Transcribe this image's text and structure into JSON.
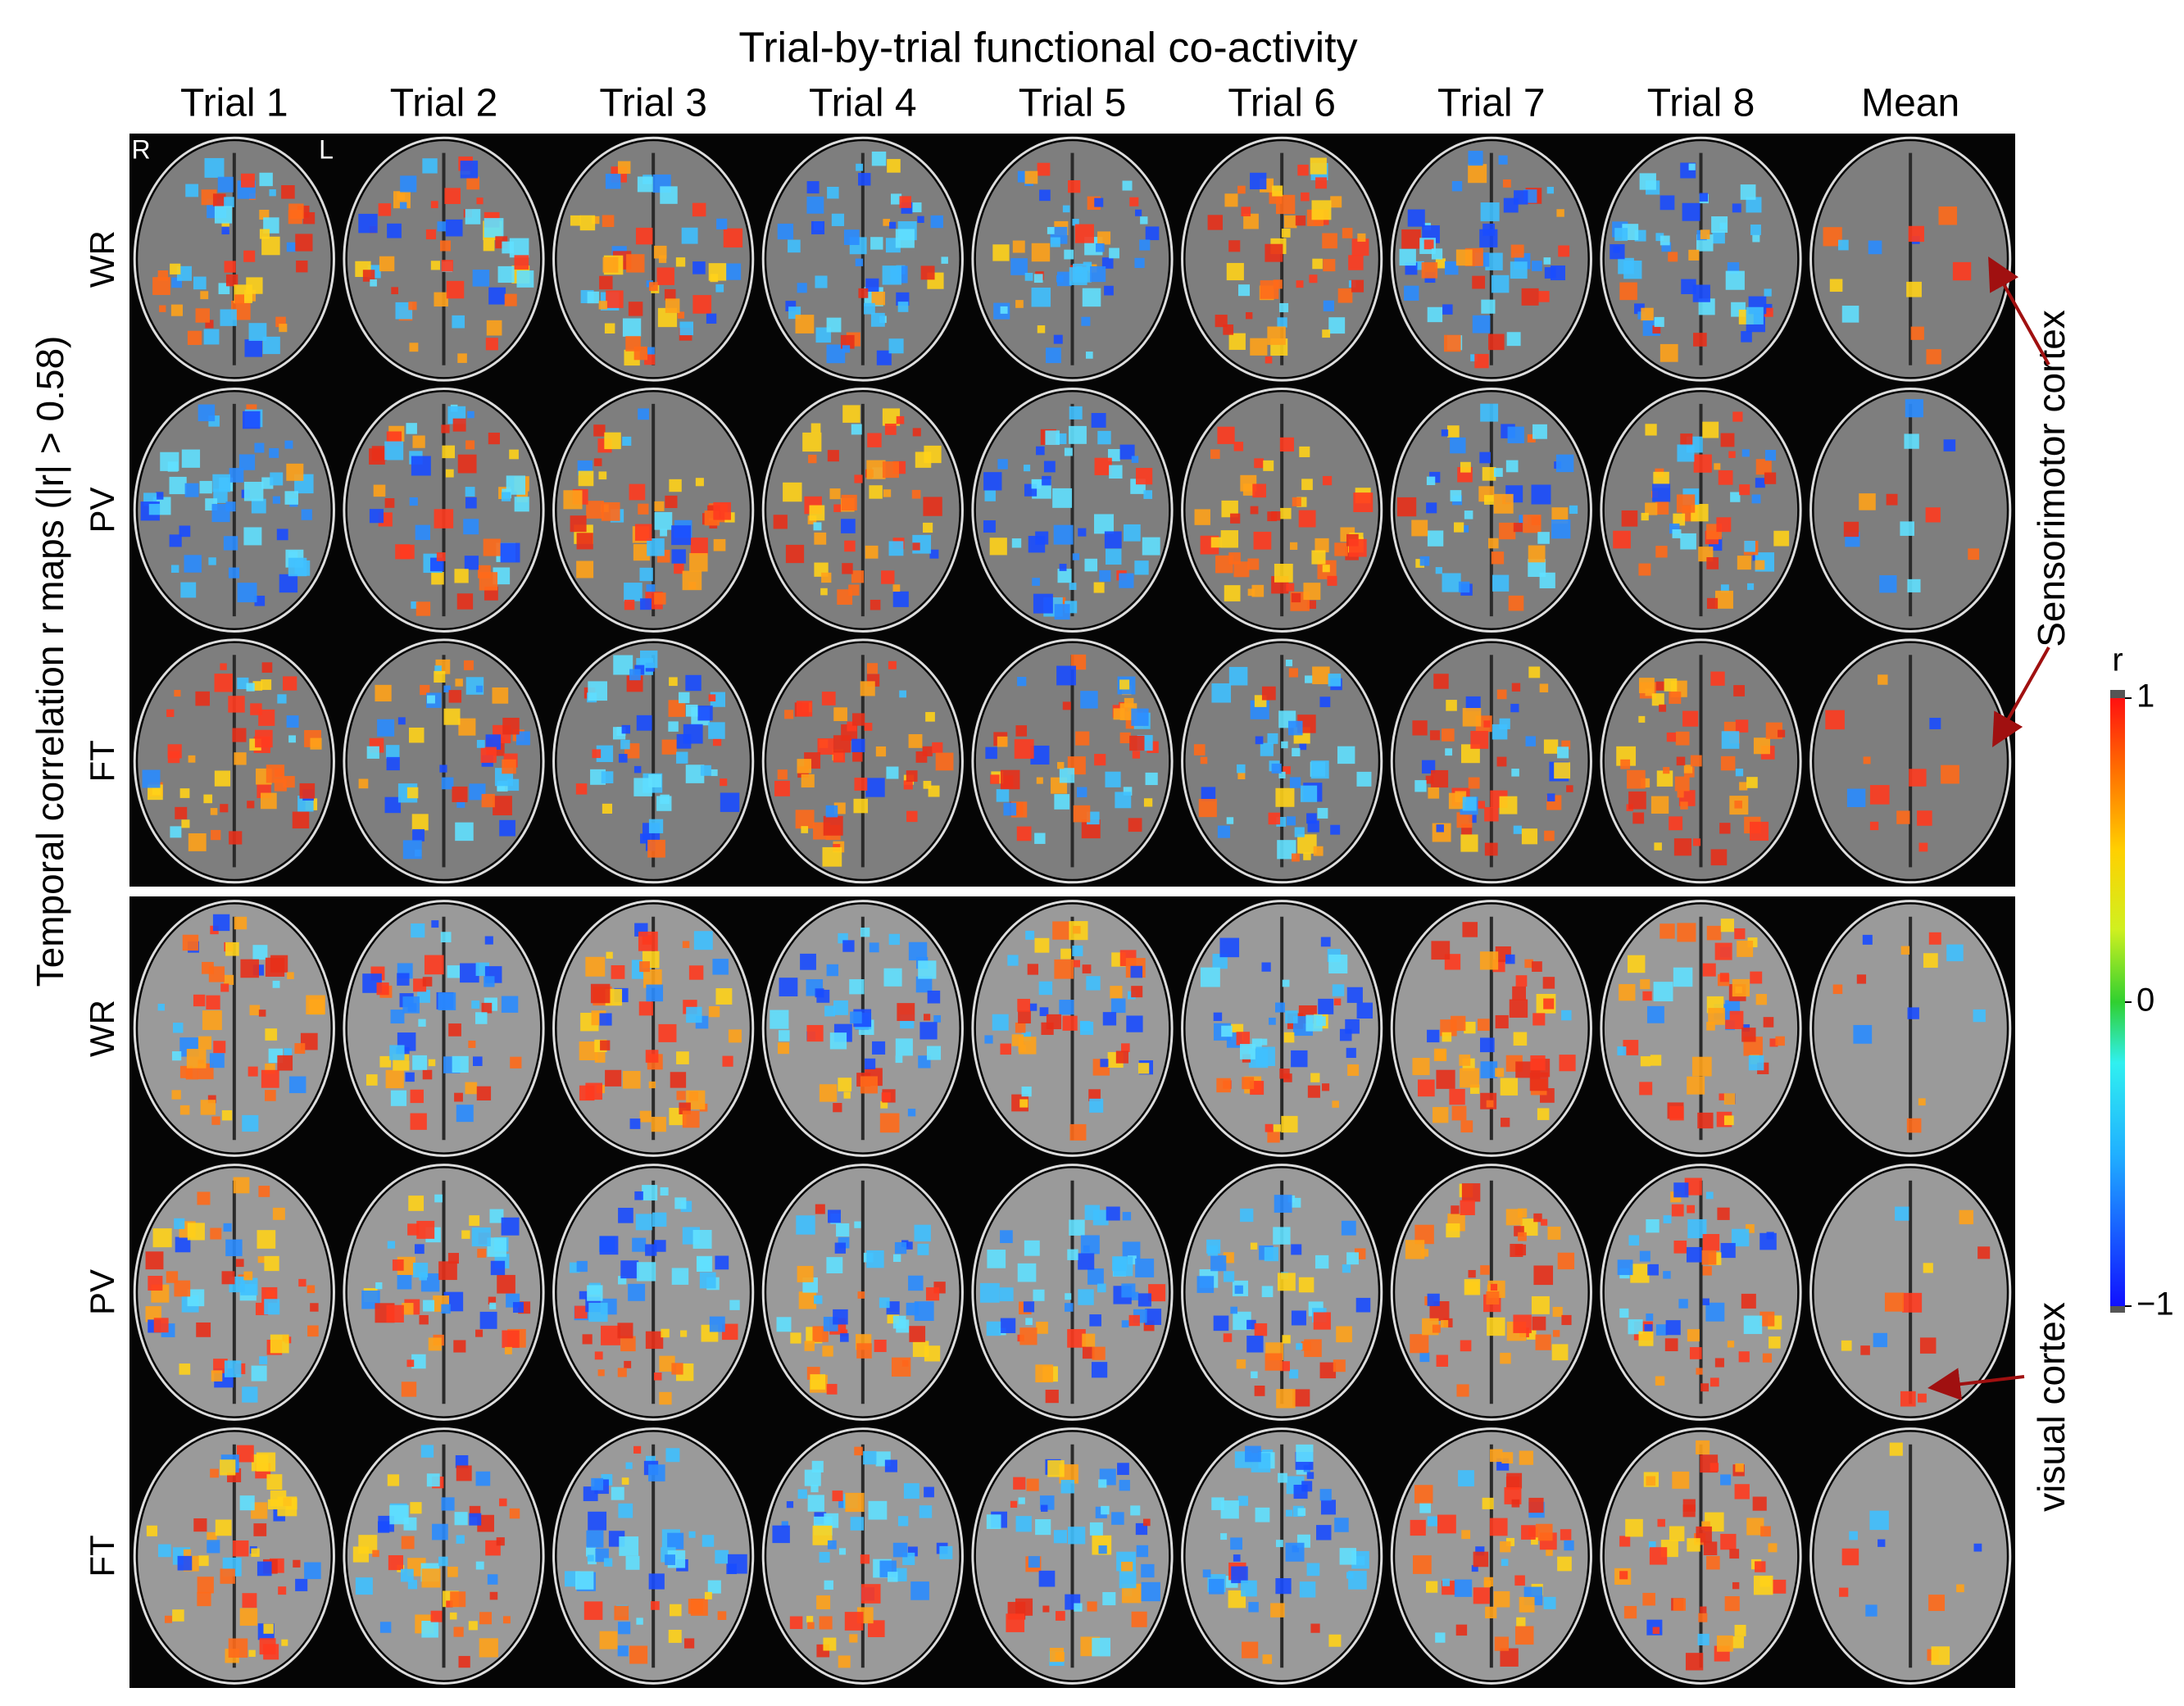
{
  "title": "Trial-by-trial  functional  co-activity",
  "columns": [
    "Trial 1",
    "Trial 2",
    "Trial 3",
    "Trial 4",
    "Trial 5",
    "Trial 6",
    "Trial 7",
    "Trial 8",
    "Mean"
  ],
  "orientation": [
    "R",
    "L"
  ],
  "blocks": [
    {
      "rows": [
        "WR",
        "PV",
        "FT"
      ]
    },
    {
      "rows": [
        "WR",
        "PV",
        "FT"
      ]
    }
  ],
  "y_label": "Temporal correlation r maps (|r| > 0.58)",
  "annotations": [
    "Sensorimotor cortex",
    "visual cortex"
  ],
  "colorbar": {
    "label": "r",
    "range": [
      -1,
      1
    ],
    "ticks": [
      {
        "value": 1,
        "label": "1"
      },
      {
        "value": 0,
        "label": "0"
      },
      {
        "value": -1,
        "label": "−1"
      }
    ]
  }
}
